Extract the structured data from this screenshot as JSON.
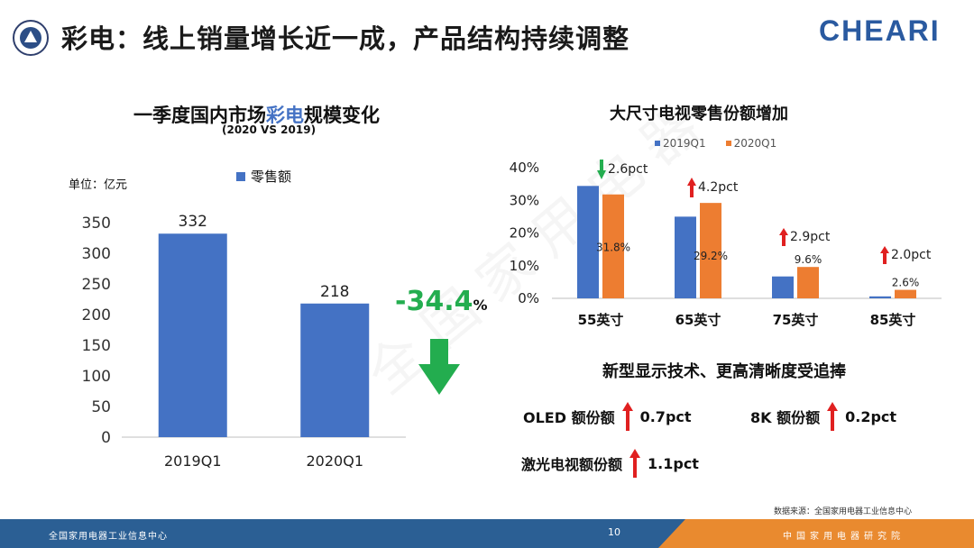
{
  "header": {
    "title": "彩电：线上销量增长近一成，产品结构持续调整",
    "brand": "CHEARI"
  },
  "left_chart": {
    "title_pre": "一季度国内市场",
    "title_hl": "彩电",
    "title_post": "规模变化",
    "subtitle": "(2020 VS 2019)",
    "unit": "单位：亿元",
    "legend": "零售额",
    "change_value": "-34.4",
    "change_unit": "%"
  },
  "right_chart": {
    "title": "大尺寸电视零售份额增加",
    "legend": [
      "2019Q1",
      "2020Q1"
    ],
    "annotations": [
      {
        "dir": "down",
        "text": "2.6pct"
      },
      {
        "dir": "up",
        "text": "4.2pct"
      },
      {
        "dir": "up",
        "text": "2.9pct"
      },
      {
        "dir": "up",
        "text": "2.0pct"
      }
    ]
  },
  "tech": {
    "title": "新型显示技术、更高清晰度受追捧",
    "items": [
      {
        "label": "OLED 额份额",
        "value": "0.7pct"
      },
      {
        "label": "8K 额份额",
        "value": "0.2pct"
      },
      {
        "label": "激光电视额份额",
        "value": "1.1pct"
      }
    ]
  },
  "source": "数据来源：全国家用电器工业信息中心",
  "footer": {
    "left": "全国家用电器工业信息中心",
    "page": "10",
    "right": "中国家用电器研究院"
  },
  "colors": {
    "blue": "#4472c4",
    "orange": "#ed7d31",
    "green": "#23ad4f",
    "red": "#e02020"
  },
  "chart_data": [
    {
      "type": "bar",
      "categories": [
        "2019Q1",
        "2020Q1"
      ],
      "series": [
        {
          "name": "零售额",
          "values": [
            332,
            218
          ]
        }
      ],
      "title": "一季度国内市场彩电规模变化",
      "subtitle": "(2020 VS 2019)",
      "ylabel": "单位：亿元",
      "ylim": [
        0,
        350
      ],
      "yticks": [
        0,
        50,
        100,
        150,
        200,
        250,
        300,
        350
      ],
      "data_labels": [
        "332",
        "218"
      ],
      "grid": false,
      "legend": "top"
    },
    {
      "type": "bar",
      "categories": [
        "55英寸",
        "65英寸",
        "75英寸",
        "85英寸"
      ],
      "series": [
        {
          "name": "2019Q1",
          "values": [
            34.4,
            25.0,
            6.7,
            0.6
          ]
        },
        {
          "name": "2020Q1",
          "values": [
            31.8,
            29.2,
            9.6,
            2.6
          ]
        }
      ],
      "title": "大尺寸电视零售份额增加",
      "ylim": [
        0,
        40
      ],
      "yticks": [
        0,
        10,
        20,
        30,
        40
      ],
      "ytick_labels": [
        "0%",
        "10%",
        "20%",
        "30%",
        "40%"
      ],
      "data_labels_2020": [
        "31.8%",
        "29.2%",
        "9.6%",
        "2.6%"
      ],
      "grid": false,
      "legend": "top"
    }
  ]
}
